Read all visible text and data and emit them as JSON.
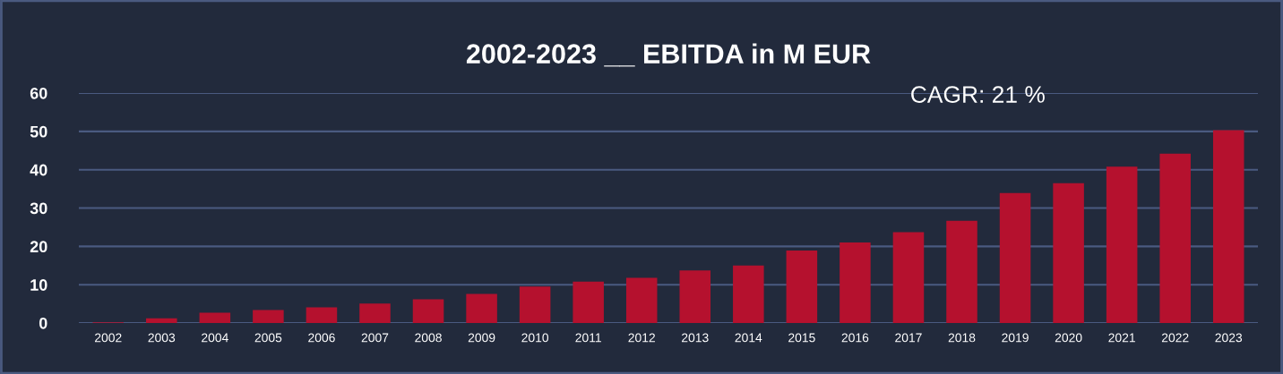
{
  "chart_data": {
    "type": "bar",
    "title": "2002-2023 __ EBITDA in M EUR",
    "categories": [
      "2002",
      "2003",
      "2004",
      "2005",
      "2006",
      "2007",
      "2008",
      "2009",
      "2010",
      "2011",
      "2012",
      "2013",
      "2014",
      "2015",
      "2016",
      "2017",
      "2018",
      "2019",
      "2020",
      "2021",
      "2022",
      "2023"
    ],
    "values": [
      0.15,
      1.2,
      2.7,
      3.4,
      4.1,
      5.1,
      6.2,
      7.6,
      9.5,
      10.8,
      11.8,
      13.7,
      15.0,
      18.9,
      21.0,
      23.7,
      26.7,
      33.9,
      36.5,
      40.8,
      44.2,
      50.3
    ],
    "color": "#b5112e",
    "ylim": [
      0,
      60
    ],
    "yticks": [
      0,
      10,
      20,
      30,
      40,
      50,
      60
    ],
    "grid": "y",
    "annotations": [
      "CAGR: 21 %"
    ]
  }
}
